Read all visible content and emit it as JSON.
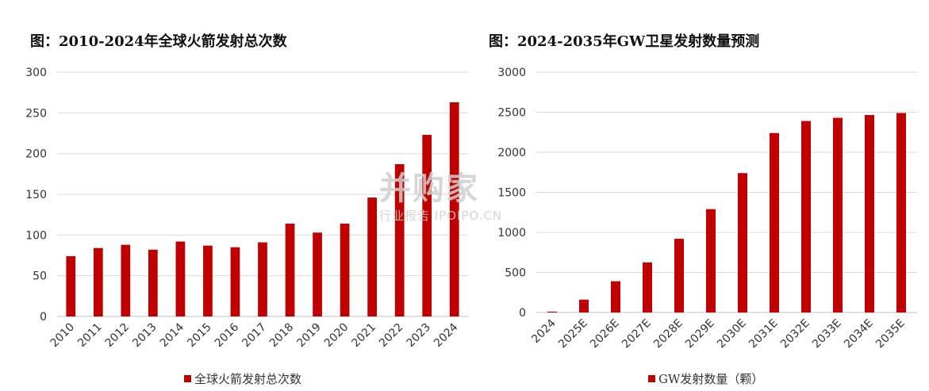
{
  "chart_data": [
    {
      "type": "bar",
      "title": "图：2010-2024年全球火箭发射总次数",
      "categories": [
        "2010",
        "2011",
        "2012",
        "2013",
        "2014",
        "2015",
        "2016",
        "2017",
        "2018",
        "2019",
        "2020",
        "2021",
        "2022",
        "2023",
        "2024"
      ],
      "series": [
        {
          "name": "全球火箭发射总次数",
          "values": [
            74,
            84,
            88,
            82,
            92,
            87,
            85,
            91,
            114,
            103,
            114,
            146,
            187,
            223,
            263
          ]
        }
      ],
      "ylim": [
        0,
        300
      ],
      "yticks": [
        0,
        50,
        100,
        150,
        200,
        250,
        300
      ],
      "grid": true,
      "legend": "bottom",
      "bar_color": "#C00000"
    },
    {
      "type": "bar",
      "title": "图：2024-2035年GW卫星发射数量预测",
      "categories": [
        "2024",
        "2025E",
        "2026E",
        "2027E",
        "2028E",
        "2029E",
        "2030E",
        "2031E",
        "2032E",
        "2033E",
        "2034E",
        "2035E"
      ],
      "series": [
        {
          "name": "GW发射数量（颗）",
          "values": [
            10,
            160,
            390,
            625,
            920,
            1290,
            1740,
            2240,
            2390,
            2430,
            2465,
            2490
          ]
        }
      ],
      "ylim": [
        0,
        3000
      ],
      "yticks": [
        0,
        500,
        1000,
        1500,
        2000,
        2500,
        3000
      ],
      "grid": true,
      "legend": "bottom",
      "bar_color": "#C00000"
    }
  ],
  "watermark": {
    "main": "并购家",
    "sub": "行业报告 IPOIPO.CN"
  }
}
